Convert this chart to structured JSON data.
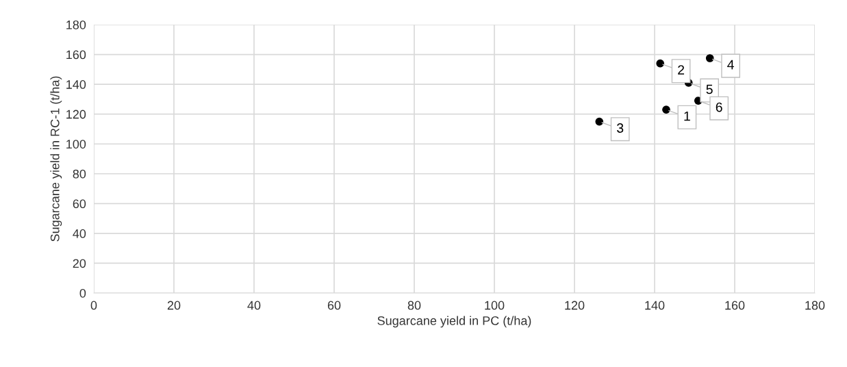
{
  "chart_data": {
    "type": "scatter",
    "xlabel": "Sugarcane yield in PC (t/ha)",
    "ylabel": "Sugarcane yield in RC-1 (t/ha)",
    "x": [
      142.9,
      141.4,
      126.2,
      153.8,
      148.5,
      150.9
    ],
    "values": [
      123,
      154,
      115,
      157.5,
      141,
      129
    ],
    "color": "#000000",
    "marker": "circle",
    "grid": true,
    "legend": false,
    "xlim": [
      0,
      180
    ],
    "ylim": [
      0,
      180
    ],
    "xticks": [
      0,
      20,
      40,
      60,
      80,
      100,
      120,
      140,
      160,
      180
    ],
    "yticks": [
      0,
      20,
      40,
      60,
      80,
      100,
      120,
      140,
      160,
      180
    ],
    "annotations": [
      {
        "text": "1",
        "x": 142.9,
        "y": 123
      },
      {
        "text": "2",
        "x": 141.4,
        "y": 154
      },
      {
        "text": "3",
        "x": 126.2,
        "y": 115
      },
      {
        "text": "4",
        "x": 153.8,
        "y": 157.5
      },
      {
        "text": "5",
        "x": 148.5,
        "y": 141
      },
      {
        "text": "6",
        "x": 150.9,
        "y": 129
      }
    ]
  }
}
